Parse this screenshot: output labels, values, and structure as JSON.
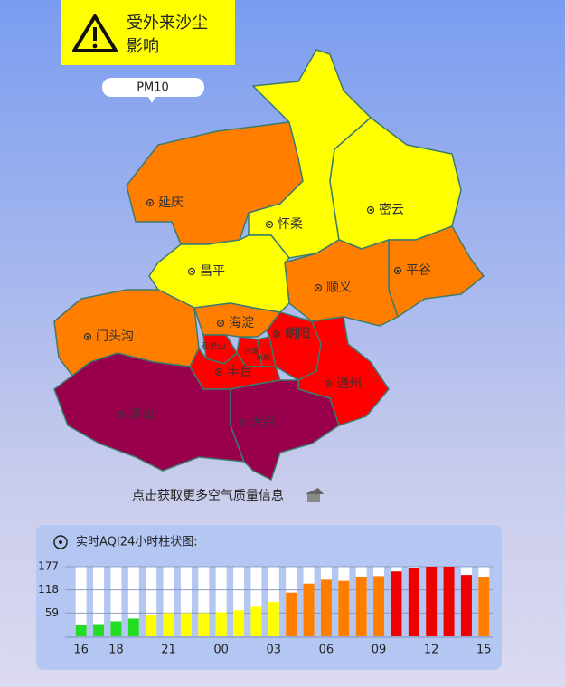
{
  "warning": {
    "lines": [
      "受外来沙尘",
      "影响"
    ]
  },
  "pollutant": "PM10",
  "map": {
    "districts": [
      {
        "name": "延庆",
        "color": "#ff7e00"
      },
      {
        "name": "怀柔",
        "color": "#ffff00"
      },
      {
        "name": "密云",
        "color": "#ffff00"
      },
      {
        "name": "平谷",
        "color": "#ff7e00"
      },
      {
        "name": "顺义",
        "color": "#ff7e00"
      },
      {
        "name": "昌平",
        "color": "#ffff00"
      },
      {
        "name": "门头沟",
        "color": "#ff7e00"
      },
      {
        "name": "海淀",
        "color": "#ff7e00"
      },
      {
        "name": "石景山",
        "color": "#ff0000"
      },
      {
        "name": "西城",
        "color": "#ff0000"
      },
      {
        "name": "东城",
        "color": "#ff0000"
      },
      {
        "name": "朝阳",
        "color": "#ff0000"
      },
      {
        "name": "丰台",
        "color": "#ff0000"
      },
      {
        "name": "通州",
        "color": "#ff0000"
      },
      {
        "name": "房山",
        "color": "#99004c"
      },
      {
        "name": "大兴",
        "color": "#99004c"
      }
    ]
  },
  "link": "点击获取更多空气质量信息",
  "chart_data": {
    "type": "bar",
    "title": "实时AQI24小时柱状图:",
    "categories": [
      "16",
      null,
      "18",
      null,
      null,
      "21",
      null,
      null,
      "00",
      null,
      null,
      "03",
      null,
      null,
      "06",
      null,
      null,
      "09",
      null,
      null,
      "12",
      null,
      null,
      "15"
    ],
    "values": [
      28,
      31,
      38,
      45,
      54,
      59,
      59,
      59,
      61,
      66,
      75,
      87,
      111,
      134,
      144,
      141,
      151,
      153,
      165,
      174,
      177,
      177,
      156,
      150
    ],
    "colors": [
      "#22dd22",
      "#22dd22",
      "#22dd22",
      "#22dd22",
      "#ffff00",
      "#ffff00",
      "#ffff00",
      "#ffff00",
      "#ffff00",
      "#ffff00",
      "#ffff00",
      "#ffff00",
      "#ff7e00",
      "#ff7e00",
      "#ff7e00",
      "#ff7e00",
      "#ff7e00",
      "#ff7e00",
      "#ee0000",
      "#ee0000",
      "#ee0000",
      "#ee0000",
      "#ee0000",
      "#ff7e00"
    ],
    "ylim": [
      0,
      177
    ],
    "yticks": [
      59,
      118,
      177
    ],
    "grid": true
  }
}
